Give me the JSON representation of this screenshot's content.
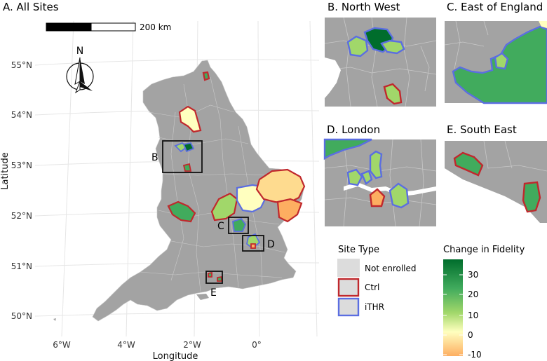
{
  "panels": {
    "a": "A. All Sites",
    "b": "B. North West",
    "c": "C. East of England",
    "d": "D. London",
    "e": "E. South East"
  },
  "scalebar": {
    "label": "200 km"
  },
  "north_arrow": {
    "label": "N"
  },
  "axes": {
    "xlabel": "Longitude",
    "ylabel": "Latitude",
    "x_ticks": [
      "6°W",
      "4°W",
      "2°W",
      "0°"
    ],
    "y_ticks": [
      "55°N",
      "54°N",
      "53°N",
      "52°N",
      "51°N",
      "50°N"
    ]
  },
  "inset_box_labels": [
    "B",
    "C",
    "D",
    "E"
  ],
  "legend": {
    "site_type": {
      "title": "Site Type",
      "items": [
        {
          "label": "Not enrolled",
          "border": "#dcdcdc"
        },
        {
          "label": "Ctrl",
          "border": "#c0282d"
        },
        {
          "label": "iTHR",
          "border": "#5b6ee1"
        }
      ]
    },
    "fidelity": {
      "title": "Change in Fidelity",
      "ticks": [
        "30",
        "20",
        "10",
        "0",
        "-10"
      ],
      "range": [
        -12,
        38
      ]
    }
  },
  "colors": {
    "land": "#a3a3a3",
    "ctrl": "#c0282d",
    "ithr": "#5b6ee1",
    "sea": "#ffffff",
    "grid": "#e8e8e8"
  }
}
